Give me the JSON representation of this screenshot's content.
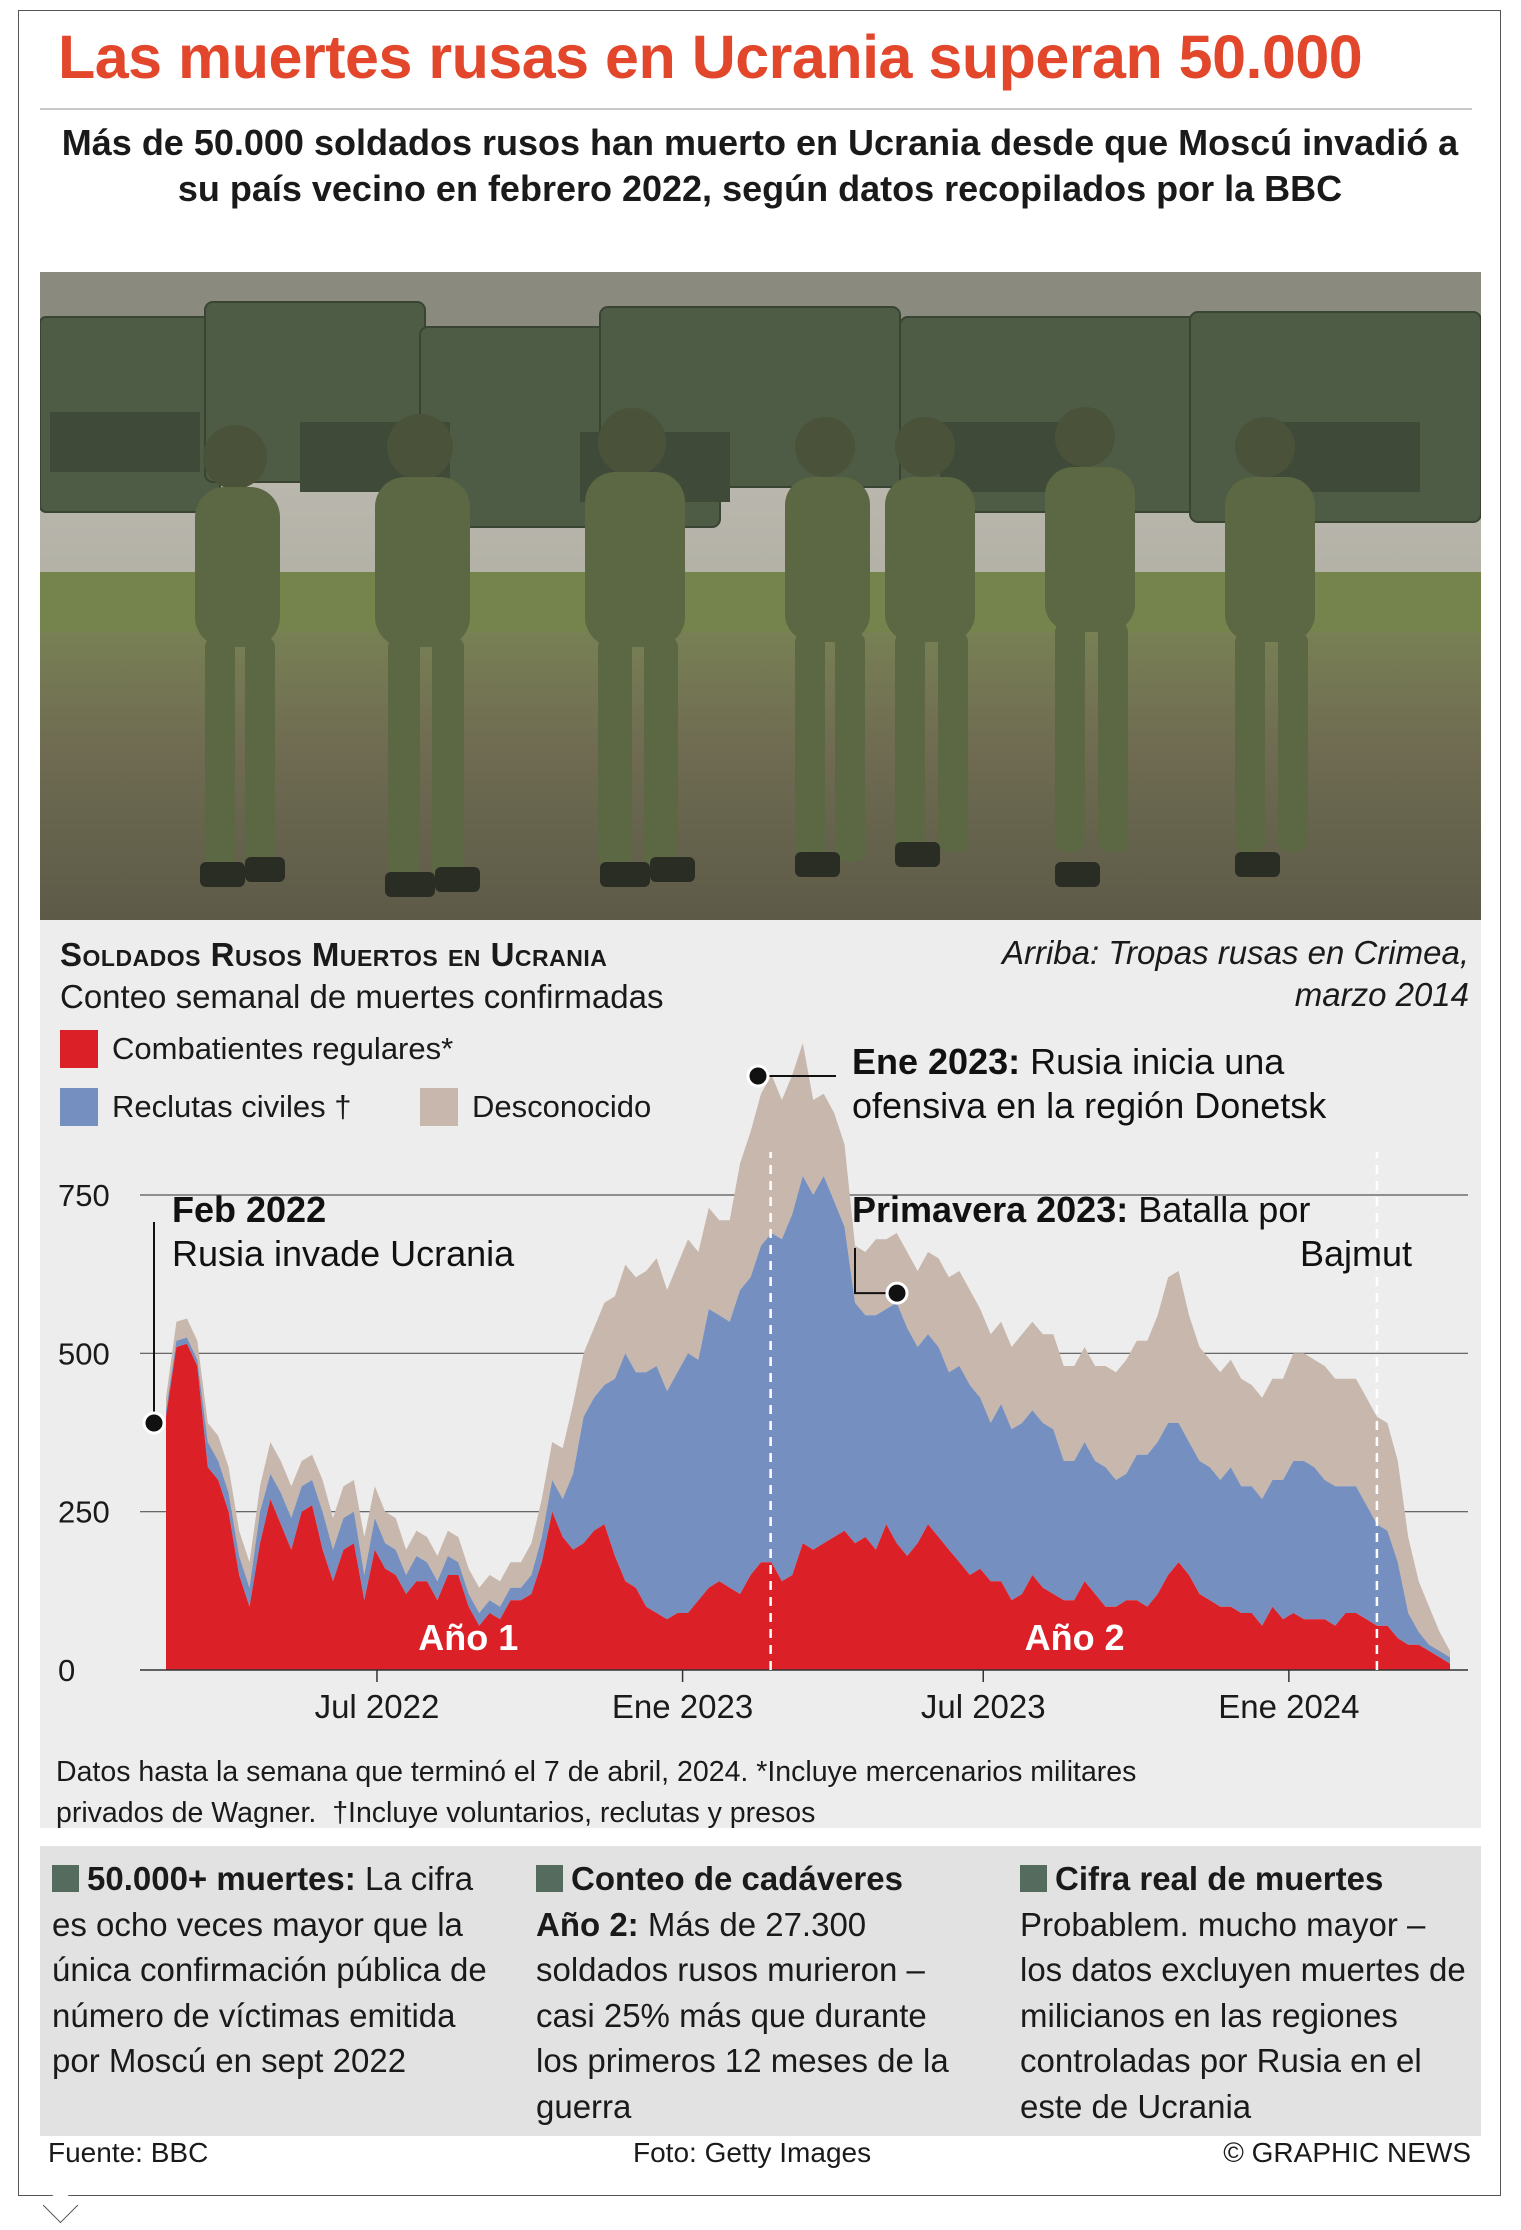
{
  "title": "Las muertes rusas en Ucrania superan 50.000",
  "subtitle": "Más de 50.000 soldados rusos han muerto en Ucrania desde que Moscú invadió a su país vecino en febrero 2022, según datos recopilados por la BBC",
  "photo_credit": "Arriba: Tropas rusas en Crimea, marzo 2014",
  "chart_data": {
    "type": "area",
    "title": "Soldados Rusos Muertos en Ucrania",
    "subtitle": "Conteo semanal de muertes confirmadas",
    "stacked": true,
    "ylim": [
      0,
      900
    ],
    "yticks": [
      0,
      250,
      500,
      750
    ],
    "x_start": "2022-02-24",
    "x_end": "2024-04-07",
    "x_ticks": [
      {
        "date": "2022-07-01",
        "label": "Jul 2022"
      },
      {
        "date": "2023-01-01",
        "label": "Ene 2023"
      },
      {
        "date": "2023-07-01",
        "label": "Jul 2023"
      },
      {
        "date": "2024-01-01",
        "label": "Ene 2024"
      }
    ],
    "grid": true,
    "series": [
      {
        "name": "Combatientes regulares*",
        "color": "#dc2027",
        "values": [
          400,
          510,
          515,
          480,
          320,
          300,
          250,
          150,
          100,
          200,
          270,
          230,
          190,
          250,
          260,
          190,
          140,
          190,
          200,
          110,
          190,
          160,
          150,
          120,
          140,
          140,
          110,
          150,
          150,
          100,
          70,
          90,
          80,
          110,
          110,
          120,
          170,
          250,
          210,
          190,
          200,
          220,
          230,
          180,
          140,
          130,
          100,
          90,
          80,
          90,
          90,
          110,
          130,
          140,
          130,
          120,
          150,
          170,
          170,
          140,
          150,
          200,
          190,
          200,
          210,
          220,
          200,
          210,
          190,
          230,
          200,
          180,
          200,
          230,
          210,
          190,
          170,
          150,
          160,
          140,
          140,
          110,
          120,
          150,
          130,
          120,
          110,
          110,
          140,
          120,
          100,
          100,
          110,
          110,
          100,
          120,
          150,
          170,
          150,
          120,
          110,
          100,
          100,
          90,
          90,
          70,
          100,
          80,
          90,
          80,
          80,
          80,
          70,
          90,
          90,
          80,
          70,
          70,
          50,
          40,
          40,
          30,
          20,
          10
        ]
      },
      {
        "name": "Reclutas civiles †",
        "color": "#7590c0",
        "values": [
          10,
          10,
          10,
          10,
          40,
          30,
          30,
          30,
          30,
          50,
          40,
          50,
          50,
          40,
          40,
          60,
          50,
          50,
          50,
          40,
          50,
          40,
          40,
          30,
          40,
          30,
          30,
          30,
          20,
          20,
          20,
          20,
          20,
          20,
          20,
          30,
          40,
          50,
          60,
          120,
          200,
          210,
          220,
          280,
          360,
          340,
          370,
          390,
          360,
          380,
          410,
          380,
          440,
          420,
          420,
          480,
          470,
          500,
          520,
          540,
          570,
          580,
          560,
          580,
          530,
          480,
          380,
          350,
          370,
          340,
          380,
          360,
          310,
          300,
          300,
          280,
          310,
          300,
          270,
          250,
          280,
          270,
          270,
          260,
          260,
          260,
          220,
          220,
          220,
          210,
          220,
          200,
          200,
          230,
          240,
          240,
          240,
          220,
          210,
          210,
          210,
          200,
          220,
          200,
          200,
          200,
          200,
          220,
          240,
          250,
          240,
          220,
          220,
          200,
          200,
          180,
          160,
          150,
          120,
          50,
          20,
          10,
          10,
          10
        ]
      },
      {
        "name": "Desconocido",
        "color": "#c8b7ac",
        "values": [
          20,
          30,
          30,
          30,
          30,
          40,
          40,
          40,
          40,
          40,
          50,
          50,
          50,
          40,
          40,
          50,
          50,
          50,
          50,
          60,
          50,
          50,
          50,
          40,
          40,
          40,
          40,
          40,
          40,
          40,
          40,
          40,
          40,
          40,
          40,
          50,
          60,
          60,
          80,
          110,
          100,
          110,
          130,
          130,
          140,
          150,
          160,
          170,
          160,
          170,
          180,
          170,
          160,
          150,
          160,
          200,
          230,
          240,
          250,
          220,
          220,
          210,
          150,
          130,
          140,
          130,
          90,
          100,
          120,
          110,
          110,
          120,
          120,
          130,
          140,
          150,
          150,
          150,
          140,
          140,
          130,
          130,
          140,
          140,
          140,
          150,
          150,
          150,
          150,
          150,
          160,
          170,
          180,
          180,
          180,
          200,
          230,
          240,
          200,
          180,
          170,
          170,
          170,
          170,
          160,
          160,
          160,
          160,
          170,
          170,
          170,
          180,
          170,
          170,
          170,
          170,
          170,
          170,
          160,
          120,
          80,
          60,
          30,
          10
        ]
      }
    ],
    "annotations": [
      {
        "date": "2022-02-24",
        "value": 390,
        "bold": "Feb 2022",
        "text": "Rusia invade Ucrania"
      },
      {
        "date": "2023-01-15",
        "value": 885,
        "bold": "Ene 2023:",
        "text": "Rusia inicia una ofensiva en la región Donetsk"
      },
      {
        "date": "2023-05-01",
        "value": 595,
        "bold": "Primavera 2023:",
        "text": "Batalla por Bajmut"
      }
    ],
    "periods": [
      {
        "label": "Año 1",
        "start": "2022-02-24",
        "end": "2023-02-23"
      },
      {
        "label": "Año 2",
        "start": "2023-02-24",
        "end": "2024-02-23"
      }
    ]
  },
  "footnote": {
    "line1": "Datos hasta la semana que terminó el 7 de abril, 2024. *Incluye mercenarios militares",
    "line2_a": "privados de Wagner.",
    "line2_b": "†Incluye voluntarios, reclutas y presos"
  },
  "boxes": [
    {
      "heading": "50.000+ muertes:",
      "text": "La cifra es ocho veces mayor que la única confirmación pública de número de víctimas emitida por Moscú en sept 2022"
    },
    {
      "heading": "Conteo de cadáveres",
      "bold2": "Año 2:",
      "text": "Más de 27.300 soldados rusos murieron – casi 25% más que durante los primeros 12 meses de la guerra"
    },
    {
      "heading": "Cifra real de muertes",
      "text": "Probablem. mucho mayor – los datos excluyen muertes de milicianos en las regiones controladas por Rusia en el este de Ucrania"
    }
  ],
  "footer": {
    "source": "Fuente: BBC",
    "photo": "Foto: Getty Images",
    "copyright": "© GRAPHIC NEWS"
  }
}
